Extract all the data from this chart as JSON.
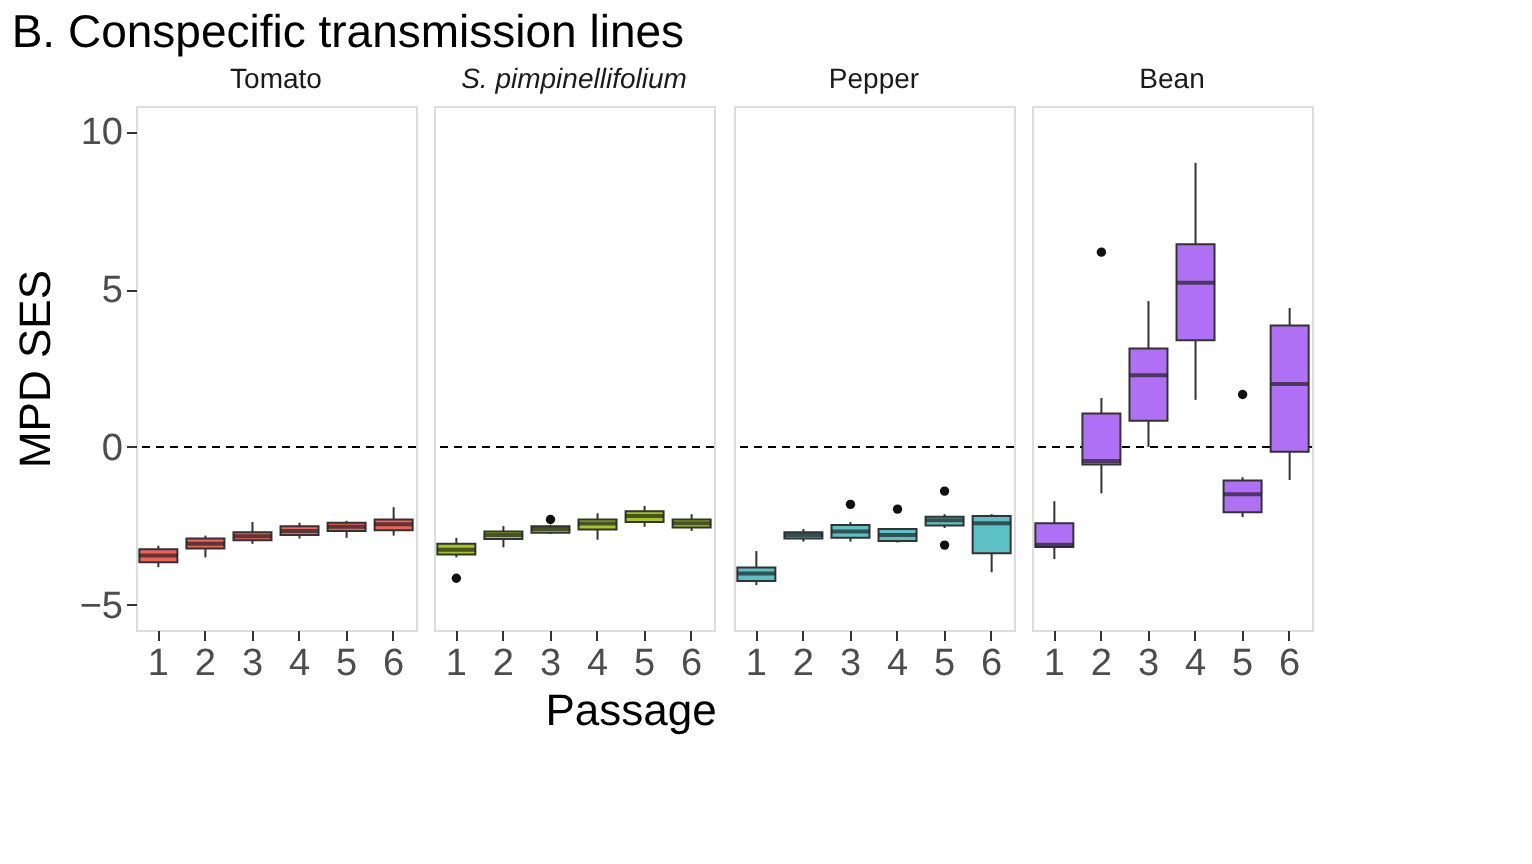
{
  "chart_data": [
    {
      "type": "box",
      "title": "Tomato",
      "annotations": [
        "B.  Conspecific transmission lines"
      ],
      "ylabel": "MPD SES",
      "categories": [
        "1",
        "2",
        "3",
        "4",
        "5",
        "6"
      ],
      "ylim": [
        -5.8,
        10.8
      ],
      "yticks": [
        -5,
        0,
        5,
        10
      ],
      "grid": false,
      "ref_lines": [
        {
          "axis": "y",
          "value": 0,
          "line_style": "dashed"
        }
      ],
      "series": [
        {
          "color": "#f0625a",
          "boxes": [
            {
              "low": -3.81,
              "q1": -3.65,
              "median": -3.44,
              "q3": -3.24,
              "high": -3.13
            },
            {
              "low": -3.5,
              "q1": -3.22,
              "median": -3.07,
              "q3": -2.9,
              "high": -2.81
            },
            {
              "low": -3.07,
              "q1": -2.96,
              "median": -2.83,
              "q3": -2.7,
              "high": -2.38
            },
            {
              "low": -2.9,
              "q1": -2.79,
              "median": -2.66,
              "q3": -2.51,
              "high": -2.4
            },
            {
              "low": -2.88,
              "q1": -2.66,
              "median": -2.53,
              "q3": -2.4,
              "high": -2.34
            },
            {
              "low": -2.81,
              "q1": -2.64,
              "median": -2.45,
              "q3": -2.3,
              "high": -1.91
            }
          ]
        }
      ]
    },
    {
      "type": "box",
      "title": "S. pimpinellifolium",
      "xlabel": "Passage",
      "categories": [
        "1",
        "2",
        "3",
        "4",
        "5",
        "6"
      ],
      "ylim": [
        -5.8,
        10.8
      ],
      "tick_labels": "x",
      "grid": false,
      "ref_lines": [
        {
          "axis": "y",
          "value": 0,
          "line_style": "dashed"
        }
      ],
      "series": [
        {
          "color": "#a4c61e",
          "boxes": [
            {
              "low": -3.5,
              "q1": -3.41,
              "median": -3.26,
              "q3": -3.07,
              "high": -2.88,
              "outliers": [
                -4.16
              ]
            },
            {
              "low": -3.18,
              "q1": -2.92,
              "median": -2.79,
              "q3": -2.68,
              "high": -2.51
            },
            {
              "low": -2.76,
              "q1": -2.72,
              "median": -2.6,
              "q3": -2.51,
              "high": -2.47,
              "outliers": [
                -2.3
              ]
            },
            {
              "low": -2.94,
              "q1": -2.62,
              "median": -2.43,
              "q3": -2.3,
              "high": -2.1
            },
            {
              "low": -2.53,
              "q1": -2.38,
              "median": -2.19,
              "q3": -2.04,
              "high": -1.87
            },
            {
              "low": -2.66,
              "q1": -2.55,
              "median": -2.42,
              "q3": -2.3,
              "high": -2.13
            }
          ]
        }
      ]
    },
    {
      "type": "box",
      "title": "Pepper",
      "categories": [
        "1",
        "2",
        "3",
        "4",
        "5",
        "6"
      ],
      "ylim": [
        -5.8,
        10.8
      ],
      "tick_labels": "x",
      "grid": false,
      "ref_lines": [
        {
          "axis": "y",
          "value": 0,
          "line_style": "dashed"
        }
      ],
      "series": [
        {
          "color": "#5cc0c4",
          "boxes": [
            {
              "low": -4.38,
              "q1": -4.25,
              "median": -4.01,
              "q3": -3.82,
              "high": -3.3
            },
            {
              "low": -3.0,
              "q1": -2.9,
              "median": -2.79,
              "q3": -2.7,
              "high": -2.6
            },
            {
              "low": -3.0,
              "q1": -2.88,
              "median": -2.68,
              "q3": -2.47,
              "high": -2.38,
              "outliers": [
                -1.82
              ]
            },
            {
              "low": -3.03,
              "q1": -2.98,
              "median": -2.79,
              "q3": -2.6,
              "high": -2.57,
              "outliers": [
                -1.97
              ]
            },
            {
              "low": -2.57,
              "q1": -2.49,
              "median": -2.32,
              "q3": -2.21,
              "high": -2.13,
              "outliers": [
                -1.4,
                -3.11
              ]
            },
            {
              "low": -3.97,
              "q1": -3.37,
              "median": -2.42,
              "q3": -2.19,
              "high": -2.13
            }
          ]
        }
      ]
    },
    {
      "type": "box",
      "title": "Bean",
      "categories": [
        "1",
        "2",
        "3",
        "4",
        "5",
        "6"
      ],
      "ylim": [
        -5.8,
        10.8
      ],
      "tick_labels": "x",
      "grid": false,
      "ref_lines": [
        {
          "axis": "y",
          "value": 0,
          "line_style": "dashed"
        }
      ],
      "series": [
        {
          "color": "#b070f5",
          "boxes": [
            {
              "low": -3.55,
              "q1": -3.17,
              "median": -3.1,
              "q3": -2.42,
              "high": -1.72
            },
            {
              "low": -1.47,
              "q1": -0.56,
              "median": -0.45,
              "q3": 1.06,
              "high": 1.55,
              "outliers": [
                6.17
              ]
            },
            {
              "low": 0.0,
              "q1": 0.83,
              "median": 2.27,
              "q3": 3.12,
              "high": 4.62
            },
            {
              "low": 1.49,
              "q1": 3.38,
              "median": 5.2,
              "q3": 6.42,
              "high": 9.0
            },
            {
              "low": -2.22,
              "q1": -2.07,
              "median": -1.5,
              "q3": -1.06,
              "high": -0.96,
              "outliers": [
                1.66
              ]
            },
            {
              "low": -1.05,
              "q1": -0.15,
              "median": 1.99,
              "q3": 3.85,
              "high": 4.4
            }
          ]
        }
      ]
    }
  ]
}
